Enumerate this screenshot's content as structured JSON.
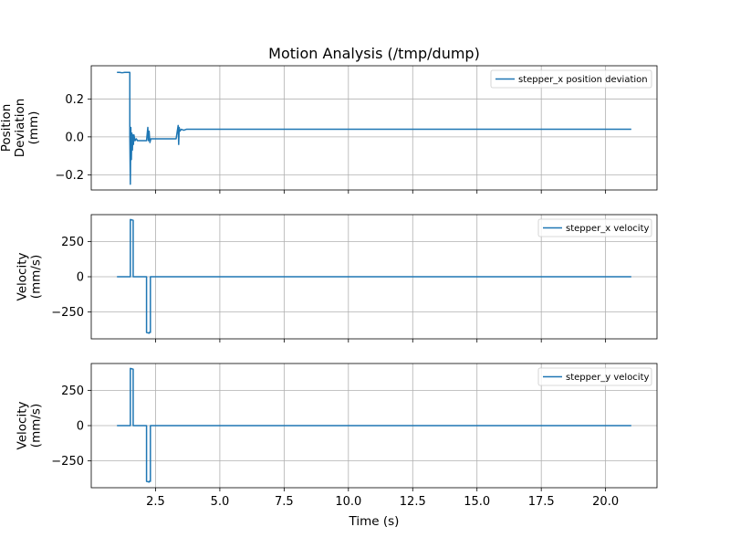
{
  "figure": {
    "title": "Motion Analysis (/tmp/dump)"
  },
  "chart_data": [
    {
      "type": "line",
      "title": "",
      "xlabel": "",
      "ylabel": "Position\nDeviation\n(mm)",
      "xlim": [
        0.0,
        22.0
      ],
      "ylim": [
        -0.28,
        0.375
      ],
      "xticks": [
        2.5,
        5.0,
        7.5,
        10.0,
        12.5,
        15.0,
        17.5,
        20.0
      ],
      "xtick_labels_visible": false,
      "yticks": [
        -0.2,
        0.0,
        0.2
      ],
      "ytick_labels": [
        "−0.2",
        "0.0",
        "0.2"
      ],
      "grid": true,
      "legend": "top-right",
      "series": [
        {
          "name": "stepper_x position deviation",
          "color": "#1f77b4",
          "x": [
            1.0,
            1.1,
            1.2,
            1.3,
            1.4,
            1.5,
            1.5,
            1.52,
            1.54,
            1.56,
            1.58,
            1.6,
            1.62,
            1.64,
            1.66,
            1.7,
            1.75,
            1.8,
            2.0,
            2.15,
            2.2,
            2.22,
            2.25,
            2.28,
            2.32,
            2.4,
            2.6,
            3.0,
            3.3,
            3.38,
            3.4,
            3.42,
            3.45,
            3.5,
            3.6,
            3.7,
            4.0,
            4.1,
            21.0
          ],
          "y": [
            0.34,
            0.34,
            0.338,
            0.34,
            0.34,
            0.34,
            0.0,
            -0.25,
            0.05,
            -0.12,
            0.02,
            -0.07,
            0.01,
            -0.04,
            0.01,
            -0.02,
            -0.01,
            -0.02,
            -0.02,
            -0.02,
            0.05,
            -0.02,
            0.03,
            -0.03,
            -0.01,
            -0.01,
            -0.01,
            -0.01,
            -0.01,
            0.06,
            -0.04,
            0.05,
            0.03,
            0.04,
            0.035,
            0.04,
            0.04,
            0.04,
            0.04
          ]
        }
      ]
    },
    {
      "type": "line",
      "title": "",
      "xlabel": "",
      "ylabel": "Velocity\n(mm/s)",
      "xlim": [
        0.0,
        22.0
      ],
      "ylim": [
        -440,
        440
      ],
      "xticks": [
        2.5,
        5.0,
        7.5,
        10.0,
        12.5,
        15.0,
        17.5,
        20.0
      ],
      "xtick_labels_visible": false,
      "yticks": [
        -250,
        0,
        250
      ],
      "ytick_labels": [
        "−250",
        "0",
        "250"
      ],
      "grid": true,
      "legend": "top-right",
      "series": [
        {
          "name": "stepper_x velocity",
          "color": "#1f77b4",
          "x": [
            1.0,
            1.52,
            1.52,
            1.63,
            1.63,
            1.66,
            1.66,
            2.15,
            2.15,
            2.25,
            2.25,
            2.3,
            2.3,
            21.0
          ],
          "y": [
            0,
            0,
            405,
            400,
            0,
            0,
            0,
            0,
            -395,
            -400,
            -395,
            -395,
            0,
            0
          ]
        }
      ]
    },
    {
      "type": "line",
      "title": "",
      "xlabel": "Time (s)",
      "ylabel": "Velocity\n(mm/s)",
      "xlim": [
        0.0,
        22.0
      ],
      "ylim": [
        -440,
        440
      ],
      "xticks": [
        2.5,
        5.0,
        7.5,
        10.0,
        12.5,
        15.0,
        17.5,
        20.0
      ],
      "xtick_labels_visible": true,
      "xtick_labels": [
        "2.5",
        "5.0",
        "7.5",
        "10.0",
        "12.5",
        "15.0",
        "17.5",
        "20.0"
      ],
      "yticks": [
        -250,
        0,
        250
      ],
      "ytick_labels": [
        "−250",
        "0",
        "250"
      ],
      "grid": true,
      "legend": "top-right",
      "series": [
        {
          "name": "stepper_y velocity",
          "color": "#1f77b4",
          "x": [
            1.0,
            1.52,
            1.52,
            1.63,
            1.63,
            1.66,
            1.66,
            2.15,
            2.15,
            2.25,
            2.25,
            2.3,
            2.3,
            21.0
          ],
          "y": [
            0,
            0,
            405,
            400,
            0,
            0,
            0,
            0,
            -395,
            -400,
            -395,
            -395,
            0,
            0
          ]
        }
      ]
    }
  ]
}
